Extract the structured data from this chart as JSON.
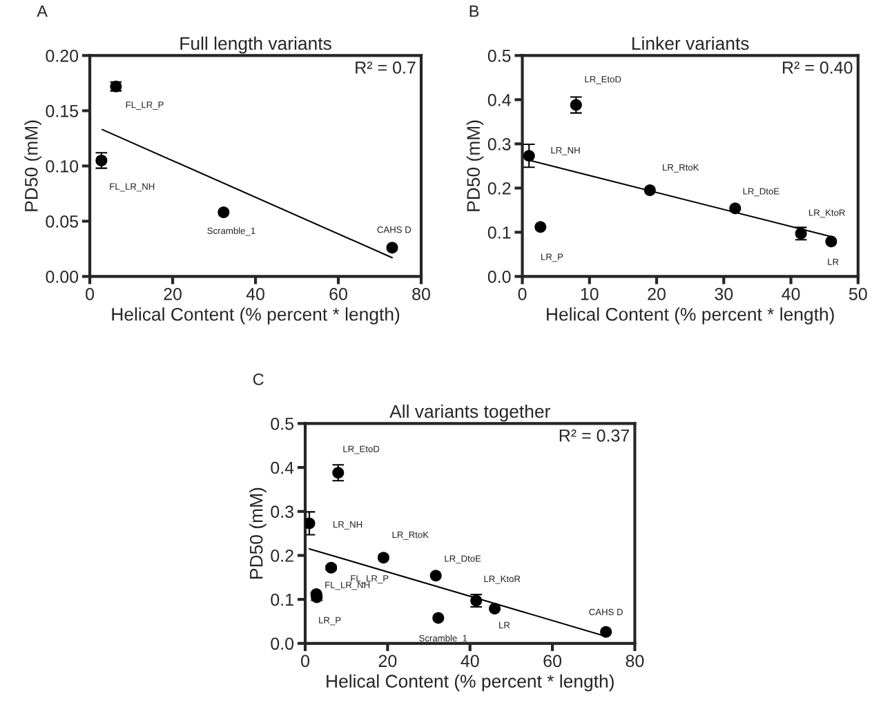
{
  "chart_data": [
    {
      "type": "scatter",
      "title": "Full length variants",
      "xlabel": "Helical Content (% percent * length)",
      "ylabel": "PD50 (mM)",
      "xlim": [
        0,
        80
      ],
      "xticks": [
        0,
        20,
        40,
        60,
        80
      ],
      "ylim": [
        0,
        0.2
      ],
      "yticks": [
        {
          "value": 0,
          "label": "0.00"
        },
        {
          "value": 0.05,
          "label": "0.05"
        },
        {
          "value": 0.1,
          "label": "0.10"
        },
        {
          "value": 0.15,
          "label": "0.15"
        },
        {
          "value": 0.2,
          "label": "0.20"
        }
      ],
      "grid": false,
      "legend": false,
      "series": [
        {
          "color": "#000000",
          "marker": "circle",
          "x": [
            6.3,
            2.8,
            32.3,
            73
          ],
          "values": [
            0.172,
            0.105,
            0.058,
            0.026
          ],
          "errors": [
            0.004,
            0.007,
            null,
            null
          ]
        },
        {
          "type": "line",
          "color": "#000000",
          "x": [
            3,
            73
          ],
          "values": [
            0.133,
            0.017
          ]
        }
      ],
      "annotations": [
        "A",
        "R² = 0.7",
        {
          "text": "FL_LR_P",
          "x": 6.3,
          "y": 0.172
        },
        {
          "text": "FL_LR_NH",
          "x": 2.8,
          "y": 0.105
        },
        {
          "text": "Scramble_1",
          "x": 32.3,
          "y": 0.058
        },
        {
          "text": "CAHS D",
          "x": 73,
          "y": 0.026
        }
      ]
    },
    {
      "type": "scatter",
      "title": "Linker variants",
      "xlabel": "Helical Content (% percent * length)",
      "ylabel": "PD50 (mM)",
      "xlim": [
        0,
        50
      ],
      "xticks": [
        0,
        10,
        20,
        30,
        40,
        50
      ],
      "ylim": [
        0,
        0.5
      ],
      "yticks": [
        {
          "value": 0,
          "label": "0.0"
        },
        0.1,
        0.2,
        0.3,
        0.4,
        0.5
      ],
      "grid": false,
      "legend": false,
      "series": [
        {
          "color": "#000000",
          "marker": "circle",
          "x": [
            1,
            2.7,
            8,
            19,
            31.7,
            41.5,
            46
          ],
          "values": [
            0.273,
            0.112,
            0.388,
            0.195,
            0.154,
            0.097,
            0.079
          ],
          "errors": [
            0.026,
            null,
            0.018,
            null,
            null,
            0.014,
            null
          ]
        },
        {
          "type": "line",
          "color": "#000000",
          "x": [
            1,
            46
          ],
          "values": [
            0.263,
            0.09
          ]
        }
      ],
      "annotations": [
        "B",
        "R² = 0.40",
        {
          "text": "LR_NH",
          "x": 1,
          "y": 0.273
        },
        {
          "text": "LR_P",
          "x": 2.7,
          "y": 0.112
        },
        {
          "text": "LR_EtoD",
          "x": 8,
          "y": 0.388
        },
        {
          "text": "LR_RtoK",
          "x": 19,
          "y": 0.195
        },
        {
          "text": "LR_DtoE",
          "x": 31.7,
          "y": 0.154
        },
        {
          "text": "LR_KtoR",
          "x": 41.5,
          "y": 0.097
        },
        {
          "text": "LR",
          "x": 46,
          "y": 0.079
        }
      ]
    },
    {
      "type": "scatter",
      "title": "All variants together",
      "xlabel": "Helical Content (% percent * length)",
      "ylabel": "PD50 (mM)",
      "xlim": [
        0,
        80
      ],
      "xticks": [
        0,
        20,
        40,
        60,
        80
      ],
      "ylim": [
        0,
        0.5
      ],
      "yticks": [
        {
          "value": 0,
          "label": "0.0"
        },
        0.1,
        0.2,
        0.3,
        0.4,
        0.5
      ],
      "grid": false,
      "legend": false,
      "series": [
        {
          "color": "#000000",
          "marker": "circle",
          "x": [
            6.3,
            2.8,
            32.3,
            73,
            1,
            2.7,
            8,
            19,
            31.7,
            41.5,
            46
          ],
          "values": [
            0.172,
            0.105,
            0.058,
            0.026,
            0.273,
            0.112,
            0.388,
            0.195,
            0.154,
            0.097,
            0.079
          ],
          "errors": [
            0.004,
            0.007,
            null,
            null,
            0.026,
            null,
            0.018,
            null,
            null,
            0.014,
            null
          ]
        },
        {
          "type": "line",
          "color": "#000000",
          "x": [
            1,
            73
          ],
          "values": [
            0.215,
            0.016
          ]
        }
      ],
      "annotations": [
        "C",
        "R² = 0.37",
        {
          "text": "LR_EtoD",
          "x": 8,
          "y": 0.388
        },
        {
          "text": "LR_NH",
          "x": 1,
          "y": 0.273
        },
        {
          "text": "LR_RtoK",
          "x": 19,
          "y": 0.195
        },
        {
          "text": "FL_LR_P",
          "x": 6.3,
          "y": 0.172
        },
        {
          "text": "LR_DtoE",
          "x": 31.7,
          "y": 0.154
        },
        {
          "text": "FL_LR_NH",
          "x": 2.8,
          "y": 0.105
        },
        {
          "text": "LR_KtoR",
          "x": 41.5,
          "y": 0.097
        },
        {
          "text": "LR_P",
          "x": 2.7,
          "y": 0.112
        },
        {
          "text": "LR",
          "x": 46,
          "y": 0.079
        },
        {
          "text": "Scramble_1",
          "x": 32.3,
          "y": 0.058
        },
        {
          "text": "CAHS D",
          "x": 73,
          "y": 0.026
        }
      ]
    }
  ]
}
